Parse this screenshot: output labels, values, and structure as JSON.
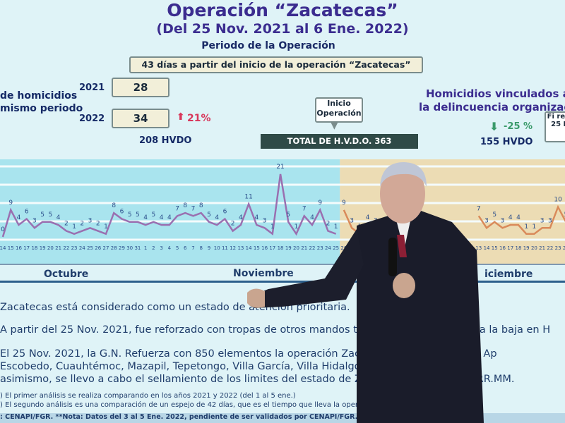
{
  "slide": {
    "title": "Operación “Zacatecas”",
    "subtitle": "(Del 25 Nov. 2021 al 6 Ene. 2022)",
    "period_heading": "Periodo de la Operación",
    "period_box": "43 días a partir del inicio de la operación “Zacatecas”",
    "left_label_1": "de homicidios",
    "left_label_2": "mismo periodo",
    "year_2021": "2021",
    "value_2021": "28",
    "year_2022": "2022",
    "value_2022": "34",
    "change_up": "21%",
    "hvdo_left": "208 HVDO",
    "inicio_label": "Inicio Operación",
    "total_label": "TOTAL DE H.V.D.O. 363",
    "right_heading_1": "Homicidios vinculados a",
    "right_heading_2": "la delincuencia organizad",
    "change_down": "-25 %",
    "hvdo_right": "155 HVDO",
    "fin_label": "Fi refo 25 D",
    "months": [
      "Octubre",
      "Noviembre",
      "iciembre"
    ],
    "paragraphs": [
      "Zacatecas está considerado como un estado de atención prioritaria.",
      "A partir del 25 Nov. 2021, fue reforzado con tropas de otros mandos territoriales y tendencia a la baja en H",
      "El 25 Nov. 2021, la G.N. Refuerza con 850 elementos la operación Zacatecas en los Mpios. de Ap",
      "Escobedo, Cuauhtémoc, Mazapil, Tepetongo, Villa García, Villa Hidalgo  los cuales carecen de",
      "asimismo, se llevo a cabo el sellamiento de los limites del estado de Zacatecas    V, V, XI y XII RR.MM."
    ],
    "notes": [
      ") El primer análisis se realiza comparando en los años 2021 y 2022 (del 1 al 5 ene.)",
      ") El segundo análisis es una comparación de un espejo de 42 días, que es el tiempo que lleva la operación"
    ],
    "source": ": CENAPI/FGR.    **Nota: Datos del 3 al 5 Ene. 2022, pendiente de ser validados por CENAPI/FGR."
  },
  "chart_data": {
    "type": "line",
    "xlabel": "",
    "ylabel": "",
    "x_labels": [
      "14",
      "15",
      "16",
      "17",
      "18",
      "19",
      "20",
      "21",
      "22",
      "23",
      "24",
      "25",
      "26",
      "27",
      "28",
      "29",
      "30",
      "31",
      "1",
      "2",
      "3",
      "4",
      "5",
      "6",
      "7",
      "8",
      "9",
      "10",
      "11",
      "12",
      "13",
      "14",
      "15",
      "16",
      "17",
      "18",
      "19",
      "20",
      "21",
      "22",
      "23",
      "24",
      "25",
      "26",
      "27",
      "28",
      "29",
      "30"
    ],
    "before": {
      "color": "#9a6fb0",
      "values": [
        0,
        9,
        4,
        6,
        3,
        5,
        5,
        4,
        2,
        1,
        2,
        3,
        2,
        1,
        8,
        6,
        5,
        5,
        4,
        5,
        4,
        4,
        7,
        8,
        7,
        8,
        5,
        4,
        6,
        2,
        4,
        11,
        4,
        3,
        1,
        21,
        5,
        1,
        7,
        4,
        9,
        2,
        1
      ]
    },
    "after_start": {
      "color": "#d98a5a",
      "values": [
        9,
        3,
        1,
        4,
        3
      ]
    },
    "after_end": {
      "color": "#d98a5a",
      "x_labels": [
        "13",
        "14",
        "15",
        "16",
        "17",
        "18",
        "19",
        "20",
        "21",
        "22",
        "23",
        "24"
      ],
      "values": [
        7,
        3,
        5,
        3,
        4,
        4,
        1,
        1,
        3,
        3,
        10,
        5
      ]
    },
    "colors": {
      "before_bg": "#a9e4ee",
      "after_bg": "#ecdcb4"
    }
  }
}
